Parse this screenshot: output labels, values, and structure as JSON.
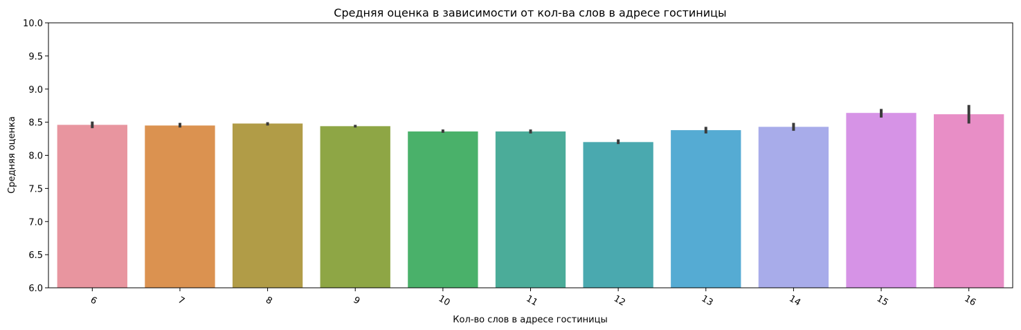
{
  "chart_data": {
    "type": "bar",
    "title": "Средняя оценка в зависимости от кол-ва слов в адресе гостиницы",
    "xlabel": "Кол-во слов в адресе гостиницы",
    "ylabel": "Средняя оценка",
    "categories": [
      "6",
      "7",
      "8",
      "9",
      "10",
      "11",
      "12",
      "13",
      "14",
      "15",
      "16"
    ],
    "values": [
      8.46,
      8.45,
      8.48,
      8.44,
      8.36,
      8.36,
      8.2,
      8.38,
      8.43,
      8.64,
      8.62
    ],
    "error_low": [
      8.41,
      8.42,
      8.45,
      8.42,
      8.34,
      8.33,
      8.17,
      8.33,
      8.37,
      8.57,
      8.48
    ],
    "error_high": [
      8.51,
      8.49,
      8.5,
      8.46,
      8.39,
      8.39,
      8.24,
      8.43,
      8.49,
      8.7,
      8.76
    ],
    "ylim": [
      6.0,
      10.0
    ],
    "yticks": [
      "6.0",
      "6.5",
      "7.0",
      "7.5",
      "8.0",
      "8.5",
      "9.0",
      "9.5",
      "10.0"
    ],
    "xtick_rotation": 30,
    "grid": false,
    "legend": "none",
    "colors": [
      "#e8959f",
      "#db9250",
      "#b19c47",
      "#8ea645",
      "#4ab16a",
      "#4bac99",
      "#4aa9af",
      "#55abd3",
      "#a8acea",
      "#d693e6",
      "#e88ec6"
    ],
    "errorbar_color": "#3b3b3b"
  }
}
